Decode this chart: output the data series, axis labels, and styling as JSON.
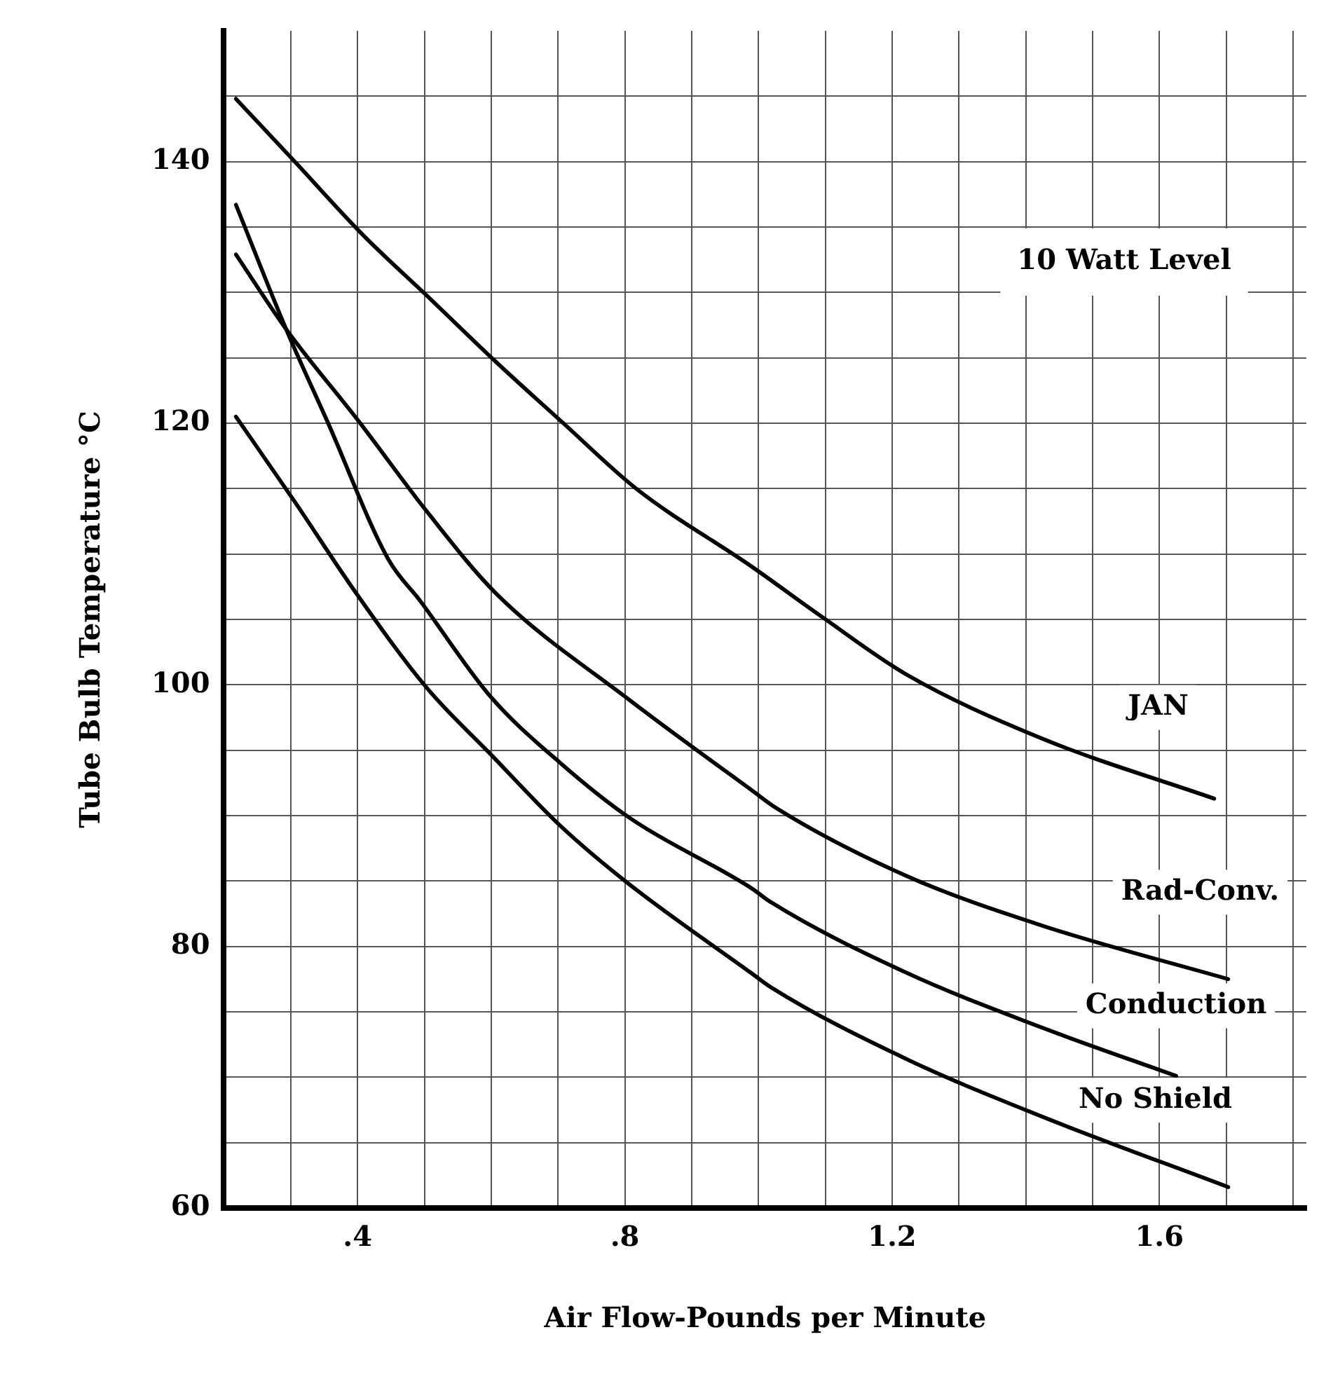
{
  "chart_data": {
    "type": "line",
    "xlabel": "Air Flow-Pounds per Minute",
    "ylabel": "Tube Bulb Temperature °C",
    "annotations": [
      "10 Watt Level"
    ],
    "xlim": [
      0.2,
      1.82
    ],
    "ylim": [
      60,
      150
    ],
    "xticks": [
      {
        "value": 0.3,
        "label": null
      },
      {
        "value": 0.4,
        "label": ".4"
      },
      {
        "value": 0.5,
        "label": null
      },
      {
        "value": 0.6,
        "label": null
      },
      {
        "value": 0.7,
        "label": null
      },
      {
        "value": 0.8,
        "label": ".8"
      },
      {
        "value": 0.9,
        "label": null
      },
      {
        "value": 1.0,
        "label": null
      },
      {
        "value": 1.1,
        "label": null
      },
      {
        "value": 1.2,
        "label": "1.2"
      },
      {
        "value": 1.3,
        "label": null
      },
      {
        "value": 1.4,
        "label": null
      },
      {
        "value": 1.5,
        "label": null
      },
      {
        "value": 1.6,
        "label": "1.6"
      },
      {
        "value": 1.7,
        "label": null
      },
      {
        "value": 1.8,
        "label": null
      }
    ],
    "yticks": [
      60,
      {
        "value": 65,
        "label": null
      },
      {
        "value": 70,
        "label": null
      },
      {
        "value": 75,
        "label": null
      },
      80,
      {
        "value": 85,
        "label": null
      },
      {
        "value": 90,
        "label": null
      },
      {
        "value": 95,
        "label": null
      },
      100,
      {
        "value": 105,
        "label": null
      },
      {
        "value": 110,
        "label": null
      },
      {
        "value": 115,
        "label": null
      },
      120,
      {
        "value": 125,
        "label": null
      },
      {
        "value": 130,
        "label": null
      },
      {
        "value": 135,
        "label": null
      },
      140,
      {
        "value": 145,
        "label": null
      }
    ],
    "grid": true,
    "legend": false,
    "marker": "none",
    "line_style": "solid",
    "series": [
      {
        "name": "JAN",
        "color": "#000000",
        "x": [
          0.218,
          0.306,
          0.408,
          0.509,
          0.609,
          0.708,
          0.817,
          0.991,
          1.095,
          1.221,
          1.424,
          1.682
        ],
        "values": [
          144.8,
          140.0,
          134.4,
          129.5,
          124.6,
          120.0,
          115.0,
          109.0,
          105.2,
          100.8,
          95.9,
          91.3
        ]
      },
      {
        "name": "Rad-Conv.",
        "color": "#000000",
        "x": [
          0.218,
          0.293,
          0.404,
          0.503,
          0.607,
          0.808,
          0.991,
          1.026,
          1.221,
          1.424,
          1.703
        ],
        "values": [
          132.9,
          127.2,
          120.0,
          113.3,
          107.0,
          98.8,
          91.9,
          90.6,
          85.4,
          81.6,
          77.5
        ]
      },
      {
        "name": "Conduction",
        "color": "#000000",
        "x": [
          0.218,
          0.293,
          0.356,
          0.446,
          0.494,
          0.599,
          0.704,
          0.808,
          0.991,
          1.018,
          1.221,
          1.424,
          1.625
        ],
        "values": [
          136.7,
          127.2,
          120.0,
          109.6,
          106.4,
          99.1,
          94.0,
          89.8,
          84.4,
          83.4,
          78.0,
          73.8,
          70.1
        ]
      },
      {
        "name": "No Shield",
        "color": "#000000",
        "x": [
          0.218,
          0.306,
          0.398,
          0.503,
          0.599,
          0.704,
          0.808,
          0.991,
          1.018,
          1.221,
          1.424,
          1.703
        ],
        "values": [
          120.5,
          114.0,
          107.0,
          99.8,
          94.7,
          89.2,
          84.7,
          77.9,
          76.9,
          71.4,
          67.0,
          61.6
        ]
      }
    ]
  }
}
